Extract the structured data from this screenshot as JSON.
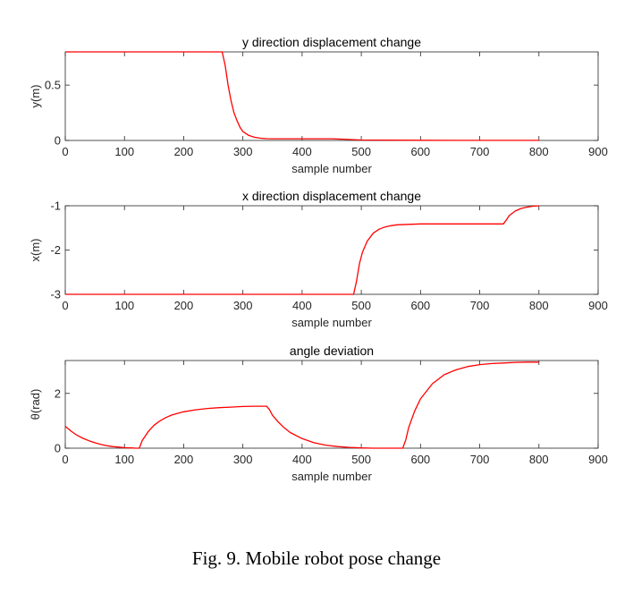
{
  "caption": "Fig. 9.   Mobile robot pose change",
  "colors": {
    "series": "#ff0000",
    "axis": "#262626"
  },
  "chart_data": [
    {
      "type": "line",
      "title": "y direction displacement change",
      "xlabel": "sample number",
      "ylabel": "y(m)",
      "xlim": [
        0,
        900
      ],
      "ylim": [
        0,
        0.8
      ],
      "xticks": [
        0,
        100,
        200,
        300,
        400,
        500,
        600,
        700,
        800,
        900
      ],
      "yticks": [
        0,
        0.5
      ],
      "yticklabels": [
        "0",
        "0.5"
      ],
      "grid": false,
      "series": [
        {
          "x": [
            0,
            265,
            270,
            275,
            280,
            285,
            290,
            295,
            300,
            310,
            320,
            330,
            340,
            350,
            400,
            450,
            500,
            600,
            700,
            800
          ],
          "y": [
            0.8,
            0.8,
            0.68,
            0.5,
            0.36,
            0.25,
            0.18,
            0.12,
            0.08,
            0.045,
            0.028,
            0.02,
            0.016,
            0.015,
            0.015,
            0.015,
            0.004,
            0.002,
            0.001,
            0.001
          ]
        }
      ]
    },
    {
      "type": "line",
      "title": "x direction displacement change",
      "xlabel": "sample number",
      "ylabel": "x(m)",
      "xlim": [
        0,
        900
      ],
      "ylim": [
        -3,
        -1
      ],
      "xticks": [
        0,
        100,
        200,
        300,
        400,
        500,
        600,
        700,
        800,
        900
      ],
      "yticks": [
        -3,
        -2,
        -1
      ],
      "yticklabels": [
        "-3",
        "-2",
        "-1"
      ],
      "grid": false,
      "series": [
        {
          "x": [
            0,
            487,
            492,
            497,
            502,
            510,
            520,
            530,
            540,
            550,
            560,
            580,
            600,
            650,
            700,
            740,
            745,
            750,
            760,
            770,
            780,
            790,
            800
          ],
          "y": [
            -3,
            -3,
            -2.7,
            -2.3,
            -2.05,
            -1.8,
            -1.62,
            -1.53,
            -1.48,
            -1.45,
            -1.43,
            -1.42,
            -1.41,
            -1.41,
            -1.41,
            -1.41,
            -1.32,
            -1.22,
            -1.12,
            -1.06,
            -1.03,
            -1.01,
            -1.0
          ]
        }
      ]
    },
    {
      "type": "line",
      "title": "angle deviation",
      "xlabel": "sample number",
      "ylabel": "θ(rad)",
      "xlim": [
        0,
        900
      ],
      "ylim": [
        0,
        3.2
      ],
      "xticks": [
        0,
        100,
        200,
        300,
        400,
        500,
        600,
        700,
        800,
        900
      ],
      "yticks": [
        0,
        2
      ],
      "yticklabels": [
        "0",
        "2"
      ],
      "grid": false,
      "series": [
        {
          "x": [
            0,
            10,
            20,
            30,
            40,
            50,
            60,
            70,
            80,
            90,
            100,
            110,
            120,
            125,
            130,
            140,
            150,
            160,
            170,
            180,
            200,
            220,
            240,
            260,
            280,
            300,
            320,
            340,
            345,
            350,
            360,
            370,
            380,
            400,
            420,
            440,
            460,
            480,
            500,
            520,
            540,
            560,
            570,
            575,
            580,
            590,
            600,
            620,
            640,
            660,
            680,
            700,
            720,
            740,
            760,
            780,
            800
          ],
          "y": [
            0.8,
            0.62,
            0.47,
            0.36,
            0.27,
            0.2,
            0.14,
            0.09,
            0.06,
            0.04,
            0.02,
            0.01,
            0.0,
            0.0,
            0.28,
            0.6,
            0.84,
            1.0,
            1.12,
            1.21,
            1.33,
            1.4,
            1.45,
            1.48,
            1.5,
            1.52,
            1.53,
            1.53,
            1.4,
            1.2,
            0.95,
            0.74,
            0.57,
            0.35,
            0.2,
            0.11,
            0.06,
            0.03,
            0.01,
            0.0,
            0.0,
            0.0,
            0.0,
            0.3,
            0.75,
            1.35,
            1.8,
            2.35,
            2.68,
            2.86,
            2.98,
            3.05,
            3.09,
            3.11,
            3.13,
            3.14,
            3.14
          ]
        }
      ]
    }
  ]
}
